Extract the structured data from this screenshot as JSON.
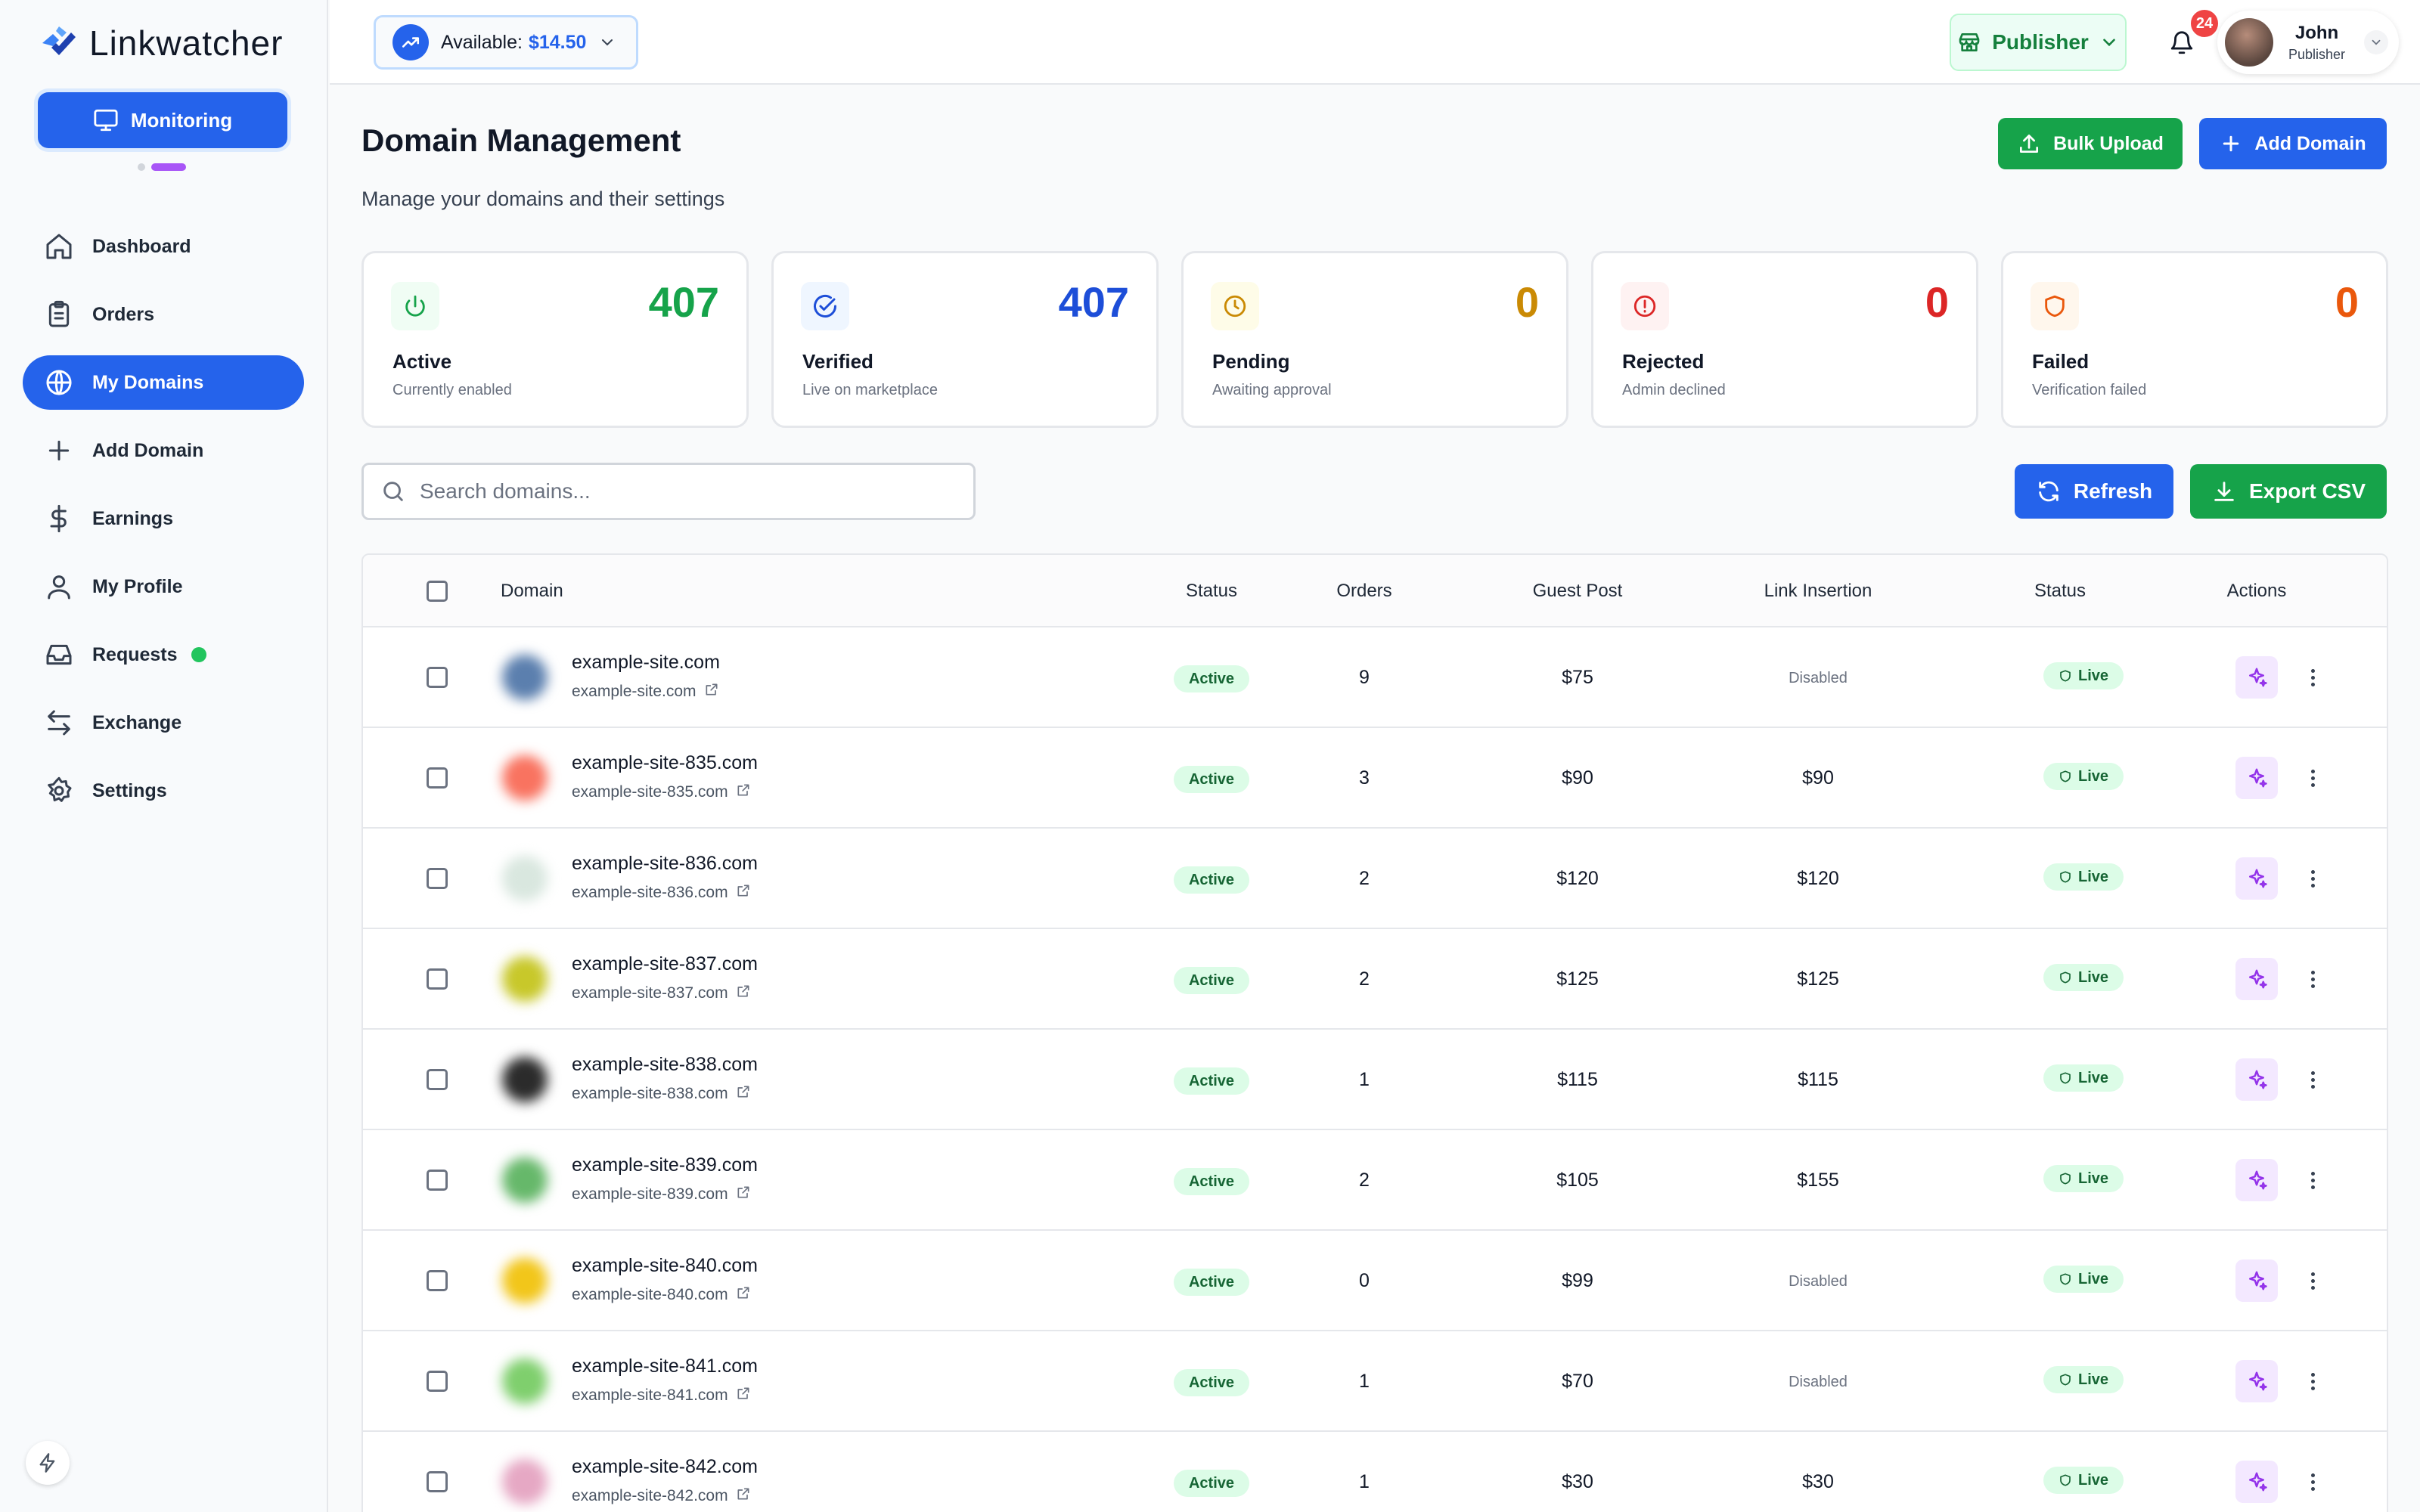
{
  "app": {
    "name": "Linkwatcher"
  },
  "sidebar": {
    "monitoring_label": "Monitoring",
    "items": [
      {
        "label": "Dashboard",
        "icon": "home-icon"
      },
      {
        "label": "Orders",
        "icon": "clipboard-icon"
      },
      {
        "label": "My Domains",
        "icon": "globe-icon",
        "active": true
      },
      {
        "label": "Add Domain",
        "icon": "plus-icon"
      },
      {
        "label": "Earnings",
        "icon": "dollar-icon"
      },
      {
        "label": "My Profile",
        "icon": "user-icon"
      },
      {
        "label": "Requests",
        "icon": "inbox-icon",
        "indicator": "online"
      },
      {
        "label": "Exchange",
        "icon": "exchange-icon"
      },
      {
        "label": "Settings",
        "icon": "gear-icon"
      }
    ]
  },
  "topbar": {
    "available_label": "Available:",
    "available_amount": "$14.50",
    "role_button": "Publisher",
    "notification_count": "24",
    "user_name": "John",
    "user_role": "Publisher"
  },
  "header": {
    "title": "Domain Management",
    "subtitle": "Manage your domains and their settings",
    "bulk_upload": "Bulk Upload",
    "add_domain": "Add Domain"
  },
  "stats": [
    {
      "value": "407",
      "label": "Active",
      "sub": "Currently enabled",
      "color": "#16a34a",
      "bg": "#f0fdf4",
      "icon": "power-icon"
    },
    {
      "value": "407",
      "label": "Verified",
      "sub": "Live on marketplace",
      "color": "#1d4ed8",
      "bg": "#eff6ff",
      "icon": "check-badge-icon"
    },
    {
      "value": "0",
      "label": "Pending",
      "sub": "Awaiting approval",
      "color": "#ca8a04",
      "bg": "#fefce8",
      "icon": "clock-icon"
    },
    {
      "value": "0",
      "label": "Rejected",
      "sub": "Admin declined",
      "color": "#dc2626",
      "bg": "#fef2f2",
      "icon": "alert-circle-icon"
    },
    {
      "value": "0",
      "label": "Failed",
      "sub": "Verification failed",
      "color": "#ea580c",
      "bg": "#fff7ed",
      "icon": "shield-icon"
    }
  ],
  "toolbar": {
    "search_placeholder": "Search domains...",
    "refresh": "Refresh",
    "export": "Export CSV"
  },
  "table": {
    "headers": [
      "Domain",
      "Status",
      "Orders",
      "Guest Post",
      "Link Insertion",
      "Status",
      "Actions"
    ],
    "rows": [
      {
        "domain": "example-site.com",
        "url": "example-site.com",
        "status": "Active",
        "orders": "9",
        "guest_post": "$75",
        "link_insertion": "Disabled",
        "live": "Live",
        "favicon": "#5b7fae"
      },
      {
        "domain": "example-site-835.com",
        "url": "example-site-835.com",
        "status": "Active",
        "orders": "3",
        "guest_post": "$90",
        "link_insertion": "$90",
        "live": "Live",
        "favicon": "#f97360"
      },
      {
        "domain": "example-site-836.com",
        "url": "example-site-836.com",
        "status": "Active",
        "orders": "2",
        "guest_post": "$120",
        "link_insertion": "$120",
        "live": "Live",
        "favicon": "#d9e7df"
      },
      {
        "domain": "example-site-837.com",
        "url": "example-site-837.com",
        "status": "Active",
        "orders": "2",
        "guest_post": "$125",
        "link_insertion": "$125",
        "live": "Live",
        "favicon": "#c8c82a"
      },
      {
        "domain": "example-site-838.com",
        "url": "example-site-838.com",
        "status": "Active",
        "orders": "1",
        "guest_post": "$115",
        "link_insertion": "$115",
        "live": "Live",
        "favicon": "#2b2b2b"
      },
      {
        "domain": "example-site-839.com",
        "url": "example-site-839.com",
        "status": "Active",
        "orders": "2",
        "guest_post": "$105",
        "link_insertion": "$155",
        "live": "Live",
        "favicon": "#66b86a"
      },
      {
        "domain": "example-site-840.com",
        "url": "example-site-840.com",
        "status": "Active",
        "orders": "0",
        "guest_post": "$99",
        "link_insertion": "Disabled",
        "live": "Live",
        "favicon": "#f2c61a"
      },
      {
        "domain": "example-site-841.com",
        "url": "example-site-841.com",
        "status": "Active",
        "orders": "1",
        "guest_post": "$70",
        "link_insertion": "Disabled",
        "live": "Live",
        "favicon": "#7fcf6d"
      },
      {
        "domain": "example-site-842.com",
        "url": "example-site-842.com",
        "status": "Active",
        "orders": "1",
        "guest_post": "$30",
        "link_insertion": "$30",
        "live": "Live",
        "favicon": "#e6a8c4"
      }
    ]
  }
}
